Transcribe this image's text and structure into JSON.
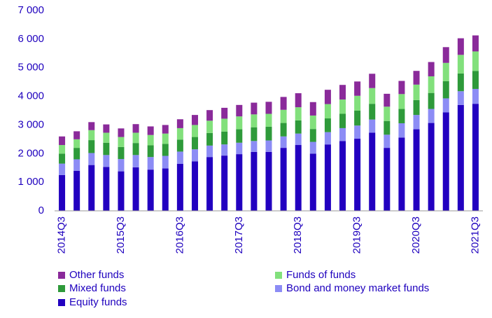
{
  "chart_data": {
    "type": "stacked_bar",
    "categories": [
      "2014Q3",
      null,
      null,
      null,
      "2015Q3",
      null,
      null,
      null,
      "2016Q3",
      null,
      null,
      null,
      "2017Q3",
      null,
      null,
      null,
      "2018Q3",
      null,
      null,
      null,
      "2019Q3",
      null,
      null,
      null,
      "2020Q3",
      null,
      null,
      null,
      "2021Q3"
    ],
    "series": [
      {
        "name": "Equity funds",
        "color": "#2200c0",
        "values": [
          1250,
          1400,
          1600,
          1530,
          1380,
          1520,
          1440,
          1480,
          1640,
          1730,
          1880,
          1930,
          1980,
          2060,
          2060,
          2200,
          2300,
          2000,
          2320,
          2440,
          2520,
          2730,
          2200,
          2560,
          2850,
          3070,
          3440,
          3700,
          3740
        ]
      },
      {
        "name": "Bond and money market funds",
        "color": "#8c8cf5",
        "values": [
          400,
          400,
          420,
          420,
          430,
          430,
          440,
          440,
          430,
          420,
          400,
          390,
          400,
          380,
          400,
          400,
          400,
          410,
          430,
          450,
          460,
          460,
          460,
          500,
          500,
          490,
          490,
          480,
          520
        ]
      },
      {
        "name": "Mixed funds",
        "color": "#2e9a3a",
        "values": [
          350,
          400,
          450,
          430,
          420,
          420,
          410,
          420,
          420,
          430,
          440,
          450,
          470,
          480,
          480,
          470,
          460,
          450,
          480,
          500,
          520,
          550,
          480,
          500,
          520,
          560,
          600,
          620,
          630
        ]
      },
      {
        "name": "Funds of funds",
        "color": "#82e07c",
        "values": [
          300,
          300,
          350,
          350,
          350,
          360,
          360,
          360,
          400,
          420,
          430,
          450,
          450,
          450,
          450,
          460,
          460,
          470,
          500,
          500,
          520,
          550,
          500,
          520,
          540,
          580,
          640,
          650,
          680
        ]
      },
      {
        "name": "Other funds",
        "color": "#8a2a9a",
        "values": [
          300,
          280,
          280,
          290,
          300,
          300,
          300,
          300,
          310,
          350,
          370,
          380,
          400,
          410,
          420,
          450,
          490,
          470,
          500,
          510,
          500,
          500,
          450,
          460,
          480,
          500,
          550,
          580,
          560
        ]
      }
    ],
    "ylim": [
      0,
      7000
    ],
    "yticks": [
      0,
      {
        "value": 1000,
        "label": "1 000"
      },
      {
        "value": 2000,
        "label": "2 000"
      },
      {
        "value": 3000,
        "label": "3 000"
      },
      {
        "value": 4000,
        "label": "4 000"
      },
      {
        "value": 5000,
        "label": "5 000"
      },
      {
        "value": 6000,
        "label": "6 000"
      },
      {
        "value": 7000,
        "label": "7 000"
      }
    ],
    "grid": false
  }
}
